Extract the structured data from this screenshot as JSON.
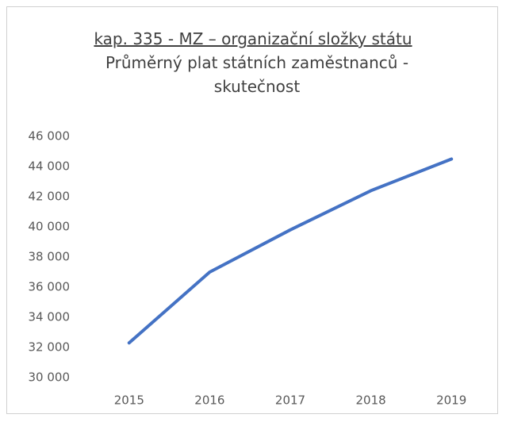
{
  "chart_data": {
    "type": "line",
    "title": "kap. 335 - MZ – organizační složky státu",
    "subtitle": "Průměrný plat státních zaměstnanců - skutečnost",
    "categories": [
      "2015",
      "2016",
      "2017",
      "2018",
      "2019"
    ],
    "series": [
      {
        "name": "Průměrný plat",
        "color": "#4472c4",
        "values": [
          32300,
          37000,
          39800,
          42400,
          44500
        ]
      }
    ],
    "ylim": [
      30000,
      46000
    ],
    "yticks": [
      {
        "value": 30000,
        "label": "30 000"
      },
      {
        "value": 32000,
        "label": "32 000"
      },
      {
        "value": 34000,
        "label": "34 000"
      },
      {
        "value": 36000,
        "label": "36 000"
      },
      {
        "value": 38000,
        "label": "38 000"
      },
      {
        "value": 40000,
        "label": "40 000"
      },
      {
        "value": 42000,
        "label": "42 000"
      },
      {
        "value": 44000,
        "label": "44 000"
      },
      {
        "value": 46000,
        "label": "46 000"
      }
    ],
    "grid": false
  }
}
